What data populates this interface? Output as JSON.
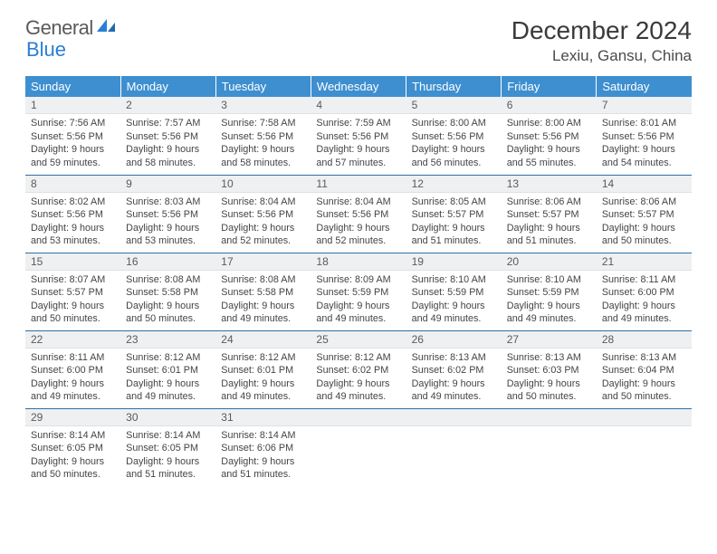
{
  "brand": {
    "word1": "General",
    "word2": "Blue"
  },
  "colors": {
    "header_bg": "#3e8fd0",
    "header_text": "#ffffff",
    "rule": "#2f6fa8",
    "strip_bg": "#eef0f2",
    "body_text": "#444444",
    "logo_gray": "#5a5a5a",
    "logo_blue": "#2a7fd4"
  },
  "title": "December 2024",
  "location": "Lexiu, Gansu, China",
  "dow": [
    "Sunday",
    "Monday",
    "Tuesday",
    "Wednesday",
    "Thursday",
    "Friday",
    "Saturday"
  ],
  "weeks": [
    [
      {
        "n": "1",
        "sr": "7:56 AM",
        "ss": "5:56 PM",
        "dl": "9 hours and 59 minutes."
      },
      {
        "n": "2",
        "sr": "7:57 AM",
        "ss": "5:56 PM",
        "dl": "9 hours and 58 minutes."
      },
      {
        "n": "3",
        "sr": "7:58 AM",
        "ss": "5:56 PM",
        "dl": "9 hours and 58 minutes."
      },
      {
        "n": "4",
        "sr": "7:59 AM",
        "ss": "5:56 PM",
        "dl": "9 hours and 57 minutes."
      },
      {
        "n": "5",
        "sr": "8:00 AM",
        "ss": "5:56 PM",
        "dl": "9 hours and 56 minutes."
      },
      {
        "n": "6",
        "sr": "8:00 AM",
        "ss": "5:56 PM",
        "dl": "9 hours and 55 minutes."
      },
      {
        "n": "7",
        "sr": "8:01 AM",
        "ss": "5:56 PM",
        "dl": "9 hours and 54 minutes."
      }
    ],
    [
      {
        "n": "8",
        "sr": "8:02 AM",
        "ss": "5:56 PM",
        "dl": "9 hours and 53 minutes."
      },
      {
        "n": "9",
        "sr": "8:03 AM",
        "ss": "5:56 PM",
        "dl": "9 hours and 53 minutes."
      },
      {
        "n": "10",
        "sr": "8:04 AM",
        "ss": "5:56 PM",
        "dl": "9 hours and 52 minutes."
      },
      {
        "n": "11",
        "sr": "8:04 AM",
        "ss": "5:56 PM",
        "dl": "9 hours and 52 minutes."
      },
      {
        "n": "12",
        "sr": "8:05 AM",
        "ss": "5:57 PM",
        "dl": "9 hours and 51 minutes."
      },
      {
        "n": "13",
        "sr": "8:06 AM",
        "ss": "5:57 PM",
        "dl": "9 hours and 51 minutes."
      },
      {
        "n": "14",
        "sr": "8:06 AM",
        "ss": "5:57 PM",
        "dl": "9 hours and 50 minutes."
      }
    ],
    [
      {
        "n": "15",
        "sr": "8:07 AM",
        "ss": "5:57 PM",
        "dl": "9 hours and 50 minutes."
      },
      {
        "n": "16",
        "sr": "8:08 AM",
        "ss": "5:58 PM",
        "dl": "9 hours and 50 minutes."
      },
      {
        "n": "17",
        "sr": "8:08 AM",
        "ss": "5:58 PM",
        "dl": "9 hours and 49 minutes."
      },
      {
        "n": "18",
        "sr": "8:09 AM",
        "ss": "5:59 PM",
        "dl": "9 hours and 49 minutes."
      },
      {
        "n": "19",
        "sr": "8:10 AM",
        "ss": "5:59 PM",
        "dl": "9 hours and 49 minutes."
      },
      {
        "n": "20",
        "sr": "8:10 AM",
        "ss": "5:59 PM",
        "dl": "9 hours and 49 minutes."
      },
      {
        "n": "21",
        "sr": "8:11 AM",
        "ss": "6:00 PM",
        "dl": "9 hours and 49 minutes."
      }
    ],
    [
      {
        "n": "22",
        "sr": "8:11 AM",
        "ss": "6:00 PM",
        "dl": "9 hours and 49 minutes."
      },
      {
        "n": "23",
        "sr": "8:12 AM",
        "ss": "6:01 PM",
        "dl": "9 hours and 49 minutes."
      },
      {
        "n": "24",
        "sr": "8:12 AM",
        "ss": "6:01 PM",
        "dl": "9 hours and 49 minutes."
      },
      {
        "n": "25",
        "sr": "8:12 AM",
        "ss": "6:02 PM",
        "dl": "9 hours and 49 minutes."
      },
      {
        "n": "26",
        "sr": "8:13 AM",
        "ss": "6:02 PM",
        "dl": "9 hours and 49 minutes."
      },
      {
        "n": "27",
        "sr": "8:13 AM",
        "ss": "6:03 PM",
        "dl": "9 hours and 50 minutes."
      },
      {
        "n": "28",
        "sr": "8:13 AM",
        "ss": "6:04 PM",
        "dl": "9 hours and 50 minutes."
      }
    ],
    [
      {
        "n": "29",
        "sr": "8:14 AM",
        "ss": "6:05 PM",
        "dl": "9 hours and 50 minutes."
      },
      {
        "n": "30",
        "sr": "8:14 AM",
        "ss": "6:05 PM",
        "dl": "9 hours and 51 minutes."
      },
      {
        "n": "31",
        "sr": "8:14 AM",
        "ss": "6:06 PM",
        "dl": "9 hours and 51 minutes."
      },
      null,
      null,
      null,
      null
    ]
  ],
  "labels": {
    "sunrise": "Sunrise:",
    "sunset": "Sunset:",
    "daylight": "Daylight:"
  }
}
